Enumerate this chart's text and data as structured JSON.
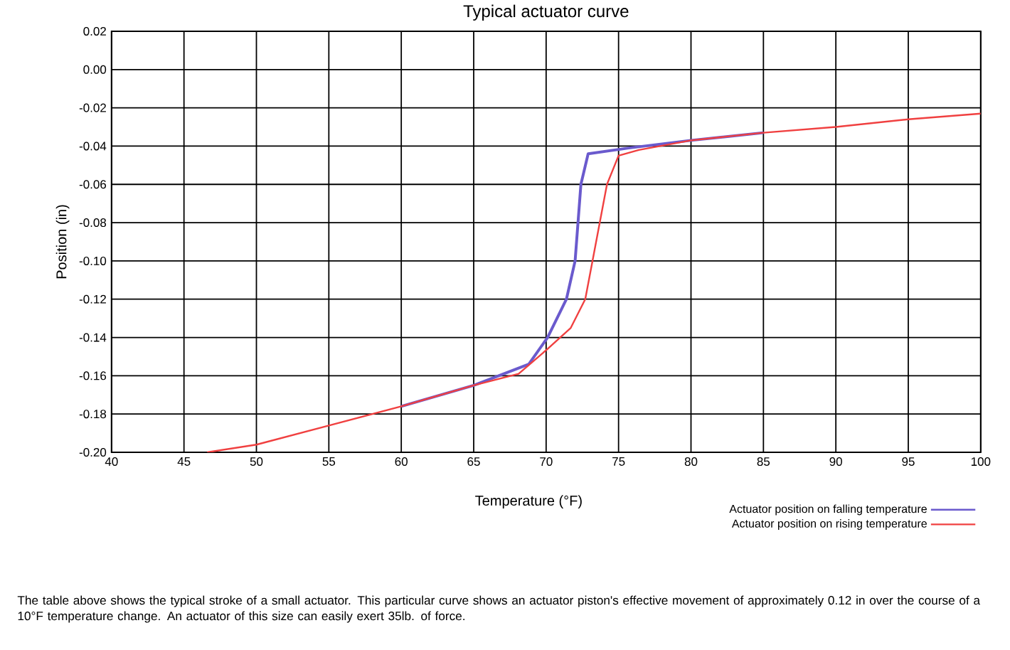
{
  "chart_data": {
    "type": "line",
    "title": "Typical actuator curve",
    "xlabel": "Temperature (°F)",
    "ylabel": "Position (in)",
    "xlim": [
      40,
      100
    ],
    "ylim": [
      -0.2,
      0.02
    ],
    "xticks": [
      40,
      45,
      50,
      55,
      60,
      65,
      70,
      75,
      80,
      85,
      90,
      95,
      100
    ],
    "yticks": [
      {
        "value": -0.2,
        "label": "-0.20"
      },
      {
        "value": -0.18,
        "label": "-0.18"
      },
      {
        "value": -0.16,
        "label": "-0.16"
      },
      {
        "value": -0.14,
        "label": "-0.14"
      },
      {
        "value": -0.12,
        "label": "-0.12"
      },
      {
        "value": -0.1,
        "label": "-0.10"
      },
      {
        "value": -0.08,
        "label": "-0.08"
      },
      {
        "value": -0.06,
        "label": "-0.06"
      },
      {
        "value": -0.04,
        "label": "-0.04"
      },
      {
        "value": -0.02,
        "label": "-0.02"
      },
      {
        "value": 0,
        "label": "0.00"
      },
      {
        "value": 0.02,
        "label": "0.02"
      }
    ],
    "grid": true,
    "legend": "bottom right",
    "marker": "none",
    "line_style": "solid",
    "series": [
      {
        "name": "Actuator position on falling temperature",
        "color": "#6a5acd",
        "x": [
          60,
          65,
          68.8,
          70.1,
          71.4,
          72.0,
          72.4,
          72.9,
          75.7,
          80,
          85
        ],
        "values": [
          -0.176,
          -0.165,
          -0.154,
          -0.14,
          -0.12,
          -0.1,
          -0.06,
          -0.044,
          -0.041,
          -0.037,
          -0.033
        ]
      },
      {
        "name": "Actuator position on rising temperature",
        "color": "#f04040",
        "x": [
          46.6,
          50,
          55,
          60,
          65,
          68.1,
          70.1,
          71.7,
          72.7,
          73.2,
          73.7,
          74.2,
          75.0,
          76.4,
          80,
          85,
          90,
          95,
          100
        ],
        "values": [
          -0.2,
          -0.196,
          -0.186,
          -0.176,
          -0.165,
          -0.159,
          -0.146,
          -0.135,
          -0.12,
          -0.1,
          -0.08,
          -0.06,
          -0.045,
          -0.042,
          -0.037,
          -0.033,
          -0.03,
          -0.026,
          -0.023
        ]
      }
    ],
    "annotations": [
      "The table above shows the typical stroke of a small actuator. This particular curve shows an actuator piston's effective movement of approximately 0.12 in over the course of a 10°F temperature change. An actuator of this size can easily exert 35lb. of force."
    ]
  }
}
